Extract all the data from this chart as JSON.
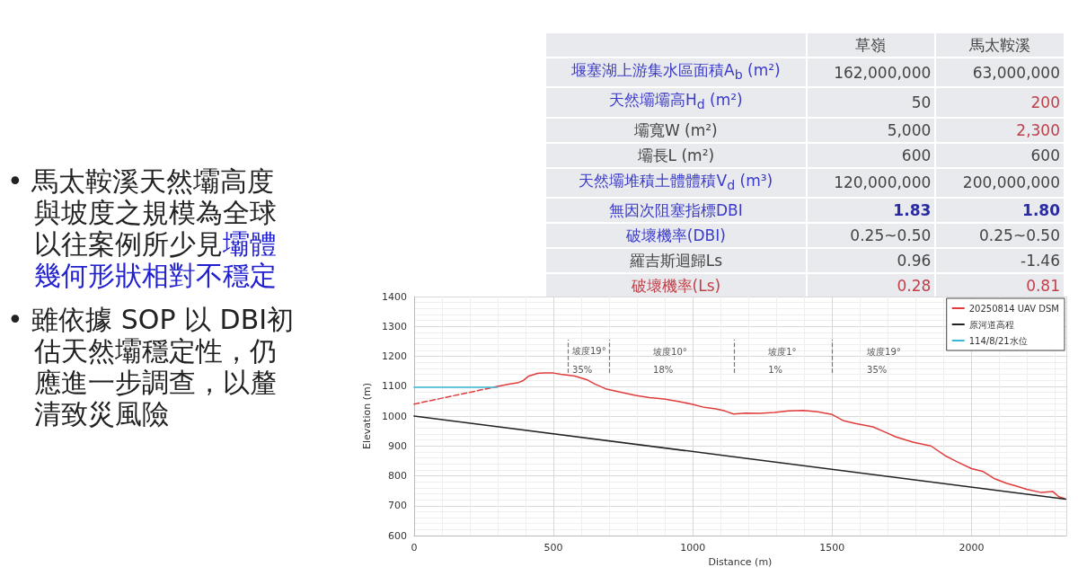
{
  "chart_data": [
    {
      "type": "other",
      "categories": [
        "草嶺",
        "馬太鞍溪"
      ],
      "y_categories": [
        "堰塞湖上游集水區面積A$_{b}$ (m²)",
        "天然壩壩高H$_{d}$ (m²)",
        "壩寬W (m²)",
        "壩長L (m²)",
        "天然壩堆積土體體積V$_{d}$ (m³)",
        "無因次阻塞指標DBI",
        "破壞機率(DBI)",
        "羅吉斯迴歸Ls",
        "破壞機率(Ls)"
      ],
      "cell_labels": [
        [
          "162,000,000",
          "63,000,000"
        ],
        [
          "50",
          "200"
        ],
        [
          "5,000",
          "2,300"
        ],
        [
          "600",
          "600"
        ],
        [
          "120,000,000",
          "200,000,000"
        ],
        [
          "1.83",
          "1.80"
        ],
        [
          "0.25~0.50",
          "0.25~0.50"
        ],
        [
          "0.96",
          "-1.46"
        ],
        [
          "0.28",
          "0.81"
        ]
      ]
    },
    {
      "type": "other",
      "annotations": [
        "• 馬太鞍溪天然壩高度與坡度之規模為全球以往案例所少見",
        "壩體幾何形狀相對不穩定",
        "• 雖依據 SOP 以 DBI初估天然壩穩定性，仍應進一步調查，以釐清致災風險"
      ]
    },
    {
      "type": "line",
      "xlabel": "Distance (m)",
      "ylabel": "Elevation (m)",
      "xlim": [
        0,
        2340
      ],
      "xticks": [
        0,
        500,
        1000,
        1500,
        2000
      ],
      "ylim": [
        600,
        1400
      ],
      "yticks": [
        600,
        700,
        800,
        900,
        1000,
        1100,
        1200,
        1300,
        1400
      ],
      "grid": true,
      "legend": "top right",
      "marker": "none",
      "series": [
        {
          "name": "20250814 UAV DSM",
          "color": "#e03c3c",
          "x": [
            299,
            340,
            371,
            392,
            412,
            443,
            464,
            500,
            526,
            577,
            619,
            649,
            691,
            742,
            794,
            845,
            897,
            948,
            1000,
            1041,
            1083,
            1115,
            1146,
            1188,
            1240,
            1292,
            1344,
            1396,
            1448,
            1500,
            1542,
            1583,
            1646,
            1688,
            1729,
            1792,
            1854,
            1906,
            1948,
            2000,
            2042,
            2083,
            2125,
            2156,
            2198,
            2250,
            2292,
            2313,
            2333
          ],
          "values": [
            1099,
            1107,
            1111,
            1119,
            1134,
            1143,
            1144,
            1144,
            1140,
            1134,
            1122,
            1107,
            1090,
            1080,
            1069,
            1062,
            1057,
            1049,
            1039,
            1029,
            1024,
            1017,
            1007,
            1010,
            1009,
            1012,
            1017,
            1019,
            1014,
            1005,
            984,
            975,
            964,
            947,
            930,
            912,
            900,
            867,
            847,
            824,
            814,
            790,
            775,
            767,
            755,
            744,
            747,
            730,
            724
          ]
        },
        {
          "color": "#e03c3c",
          "line_style": "dashed",
          "x": [
            0,
            299
          ],
          "values": [
            1040,
            1099
          ]
        },
        {
          "name": "原河道高程",
          "color": "#222222",
          "x": [
            0,
            2338
          ],
          "values": [
            1000,
            722
          ]
        },
        {
          "name": "114/8/21水位",
          "color": "#3ab8d8",
          "x": [
            0,
            299
          ],
          "values": [
            1096,
            1096
          ]
        }
      ],
      "annotations": [
        {
          "text": "坡度19°",
          "x": 702,
          "y": 1217
        },
        "35%",
        "坡度10°",
        "18%",
        "坡度1°",
        "1%",
        "坡度19°",
        "35%"
      ],
      "ref_lines": [
        {
          "axis": "x",
          "value": 553
        },
        {
          "axis": "x",
          "value": 702
        },
        {
          "axis": "x",
          "value": 1147
        },
        {
          "axis": "x",
          "value": 1501
        }
      ]
    }
  ]
}
